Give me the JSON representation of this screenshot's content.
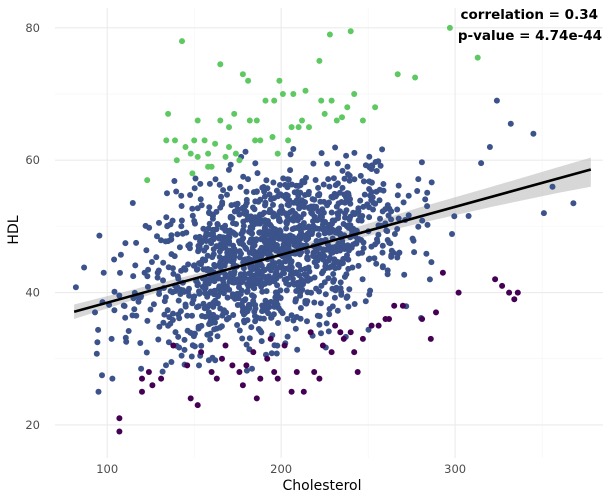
{
  "chart_data": {
    "type": "scatter",
    "xlabel": "Cholesterol",
    "ylabel": "HDL",
    "xlim": [
      70,
      385
    ],
    "ylim": [
      15,
      83
    ],
    "x_ticks": [
      100,
      200,
      300
    ],
    "y_ticks": [
      20,
      40,
      60,
      80
    ],
    "x_tick_labels": [
      "100",
      "200",
      "300"
    ],
    "y_tick_labels": [
      "20",
      "40",
      "60",
      "80"
    ],
    "grid": true,
    "legend": "none",
    "annotations": {
      "correlation": "correlation = 0.34",
      "pvalue": "p-value =  4.74e-44"
    },
    "fit_line": {
      "x": [
        81,
        378
      ],
      "y": [
        37.1,
        58.6
      ]
    },
    "confidence_band": {
      "x": [
        81,
        120,
        160,
        200,
        240,
        280,
        320,
        360,
        378
      ],
      "lower": [
        36.0,
        39.3,
        42.5,
        45.3,
        47.9,
        50.5,
        52.9,
        55.1,
        56.0
      ],
      "upper": [
        38.2,
        40.8,
        43.4,
        46.3,
        49.6,
        52.9,
        55.9,
        59.0,
        60.4
      ]
    },
    "series": [
      {
        "color": "#3b528b",
        "generated": true,
        "n": 1400,
        "x_mean": 195,
        "x_sd": 38,
        "slope": 0.075,
        "intercept": 31.0,
        "resid_sd": 6.2,
        "y_min": 28,
        "y_max": 62
      },
      {
        "color": "#5ec962",
        "values": [
          [
            143,
            78
          ],
          [
            165,
            74.5
          ],
          [
            178,
            73
          ],
          [
            181,
            72
          ],
          [
            199,
            72
          ],
          [
            222,
            75
          ],
          [
            228,
            79
          ],
          [
            240,
            79.5
          ],
          [
            267,
            73
          ],
          [
            277,
            72.5
          ],
          [
            297,
            80
          ],
          [
            313,
            75.5
          ],
          [
            135,
            67
          ],
          [
            152,
            66
          ],
          [
            156,
            63
          ],
          [
            165,
            66
          ],
          [
            170,
            65
          ],
          [
            173,
            67
          ],
          [
            182,
            66
          ],
          [
            191,
            69
          ],
          [
            201,
            70
          ],
          [
            214,
            70.5
          ],
          [
            229,
            69
          ],
          [
            238,
            68
          ],
          [
            254,
            68
          ],
          [
            150,
            63
          ],
          [
            158,
            61
          ],
          [
            170,
            62
          ],
          [
            174,
            61
          ],
          [
            185,
            63
          ],
          [
            195,
            63.5
          ],
          [
            204,
            63
          ],
          [
            210,
            65
          ],
          [
            216,
            65
          ],
          [
            225,
            67
          ],
          [
            232,
            66
          ],
          [
            242,
            70
          ],
          [
            247,
            66
          ],
          [
            139,
            63
          ],
          [
            145,
            62
          ],
          [
            148,
            61
          ],
          [
            162,
            62.5
          ],
          [
            168,
            60.5
          ],
          [
            176,
            60
          ],
          [
            188,
            63
          ],
          [
            198,
            61
          ],
          [
            212,
            66
          ],
          [
            223,
            69
          ],
          [
            235,
            66.5
          ],
          [
            149,
            58
          ],
          [
            158,
            59
          ],
          [
            160,
            59
          ],
          [
            123,
            57
          ],
          [
            134,
            63
          ],
          [
            206,
            65
          ],
          [
            140,
            60
          ],
          [
            152,
            60.5
          ],
          [
            186,
            66
          ],
          [
            196,
            69
          ],
          [
            207,
            70
          ]
        ]
      },
      {
        "color": "#440154",
        "values": [
          [
            107,
            21
          ],
          [
            107,
            19
          ],
          [
            148,
            24
          ],
          [
            152,
            23
          ],
          [
            131,
            27
          ],
          [
            124,
            28
          ],
          [
            120,
            25
          ],
          [
            146,
            29
          ],
          [
            154,
            31
          ],
          [
            160,
            28
          ],
          [
            166,
            30
          ],
          [
            168,
            32
          ],
          [
            172,
            29
          ],
          [
            176,
            28
          ],
          [
            180,
            29
          ],
          [
            184,
            31
          ],
          [
            188,
            27
          ],
          [
            194,
            33
          ],
          [
            196,
            28
          ],
          [
            198,
            27
          ],
          [
            192,
            30
          ],
          [
            202,
            32
          ],
          [
            209,
            28
          ],
          [
            222,
            27
          ],
          [
            224,
            32
          ],
          [
            229,
            31
          ],
          [
            231,
            35
          ],
          [
            234,
            34
          ],
          [
            240,
            34
          ],
          [
            242,
            31
          ],
          [
            244,
            28
          ],
          [
            247,
            33
          ],
          [
            252,
            35
          ],
          [
            256,
            35
          ],
          [
            262,
            36
          ],
          [
            265,
            38
          ],
          [
            270,
            38
          ],
          [
            281,
            36
          ],
          [
            286,
            33
          ],
          [
            289,
            37
          ],
          [
            293,
            43
          ],
          [
            302,
            40
          ],
          [
            323,
            42
          ],
          [
            327,
            41
          ],
          [
            331,
            40
          ],
          [
            334,
            39
          ],
          [
            336,
            40
          ],
          [
            120,
            27
          ],
          [
            126,
            26
          ],
          [
            138,
            32
          ],
          [
            163,
            27
          ],
          [
            178,
            26
          ],
          [
            186,
            24
          ],
          [
            206,
            25
          ],
          [
            213,
            25
          ],
          [
            219,
            28
          ],
          [
            217,
            34
          ],
          [
            236,
            33
          ],
          [
            260,
            36
          ]
        ]
      }
    ]
  }
}
